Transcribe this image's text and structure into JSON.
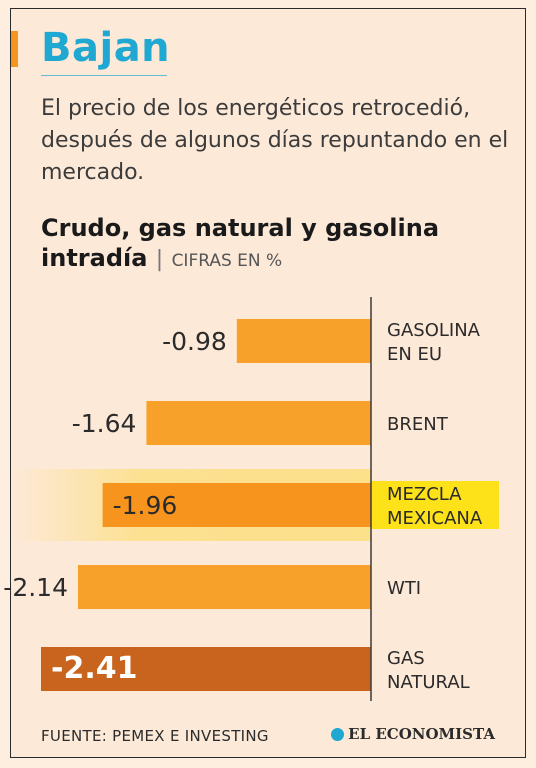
{
  "headline": "Bajan",
  "subtitle": "El precio de los energéticos retrocedió, después de algunos días repuntando en el mercado.",
  "chart_title_line1": "Crudo, gas natural y gasolina",
  "chart_title_line2": "intradía",
  "chart_units": "CIFRAS EN %",
  "source": "FUENTE: PEMEX E INVESTING",
  "brand": "EL ECONOMISTA",
  "colors": {
    "bar": "#f7a12a",
    "bar_highlight": "#f7941d",
    "bar_strong": "#c8641e",
    "label_highlight_bg": "#fde21a",
    "row_highlight_bg": "#fce08a"
  },
  "chart_data": {
    "type": "bar",
    "orientation": "horizontal",
    "categories": [
      [
        "GASOLINA",
        "EN EU"
      ],
      [
        "BRENT"
      ],
      [
        "MEZCLA",
        "MEXICANA"
      ],
      [
        "WTI"
      ],
      [
        "GAS",
        "NATURAL"
      ]
    ],
    "values": [
      -0.98,
      -1.64,
      -1.96,
      -2.14,
      -2.41
    ],
    "value_labels": [
      "-0.98",
      "-1.64",
      "-1.96",
      "-2.14",
      "-2.41"
    ],
    "highlight": [
      "MEZCLA MEXICANA"
    ],
    "xlim": [
      -2.41,
      0
    ],
    "grid": false,
    "legend": "none"
  }
}
